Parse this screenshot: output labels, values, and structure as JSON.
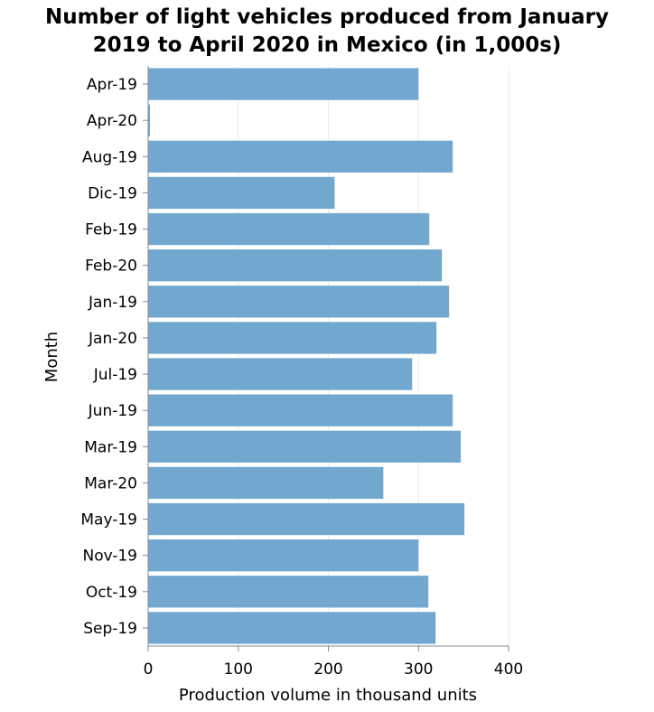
{
  "chart_data": {
    "type": "bar",
    "orientation": "horizontal",
    "title_lines": [
      "Number of light vehicles produced from January",
      "2019 to April 2020 in Mexico (in 1,000s)"
    ],
    "xlabel": "Production volume in thousand units",
    "ylabel": "Month",
    "xlim": [
      0,
      400
    ],
    "xticks": [
      0,
      100,
      200,
      300,
      400
    ],
    "grid": true,
    "legend": "none",
    "bar_color": "#72a8d0",
    "categories": [
      "Apr-19",
      "Apr-20",
      "Aug-19",
      "Dic-19",
      "Feb-19",
      "Feb-20",
      "Jan-19",
      "Jan-20",
      "Jul-19",
      "Jun-19",
      "Mar-19",
      "Mar-20",
      "May-19",
      "Nov-19",
      "Oct-19",
      "Sep-19"
    ],
    "values": [
      300,
      2,
      338,
      207,
      312,
      326,
      334,
      320,
      293,
      338,
      347,
      261,
      351,
      300,
      311,
      319
    ]
  }
}
